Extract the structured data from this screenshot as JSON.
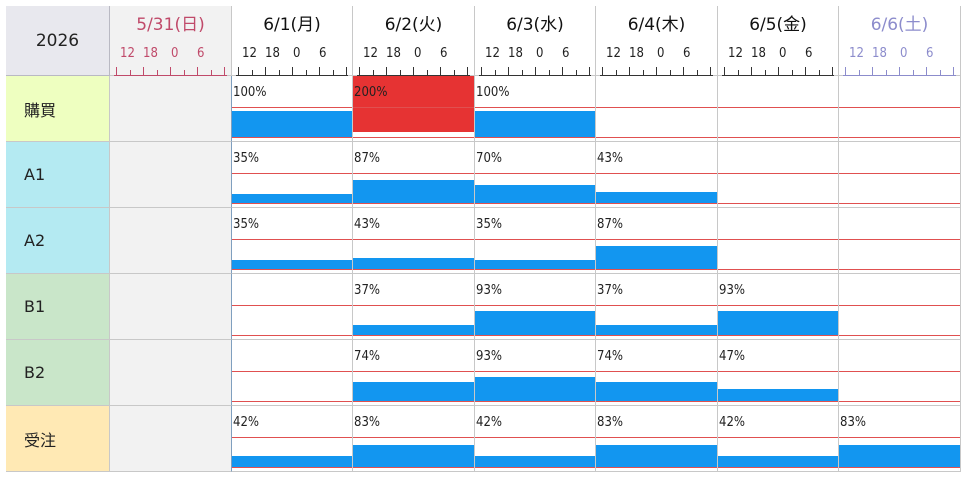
{
  "year": "2026",
  "days": [
    {
      "label": "5/31(日)",
      "kind": "sunday"
    },
    {
      "label": "6/1(月)",
      "kind": "weekday"
    },
    {
      "label": "6/2(火)",
      "kind": "weekday"
    },
    {
      "label": "6/3(水)",
      "kind": "weekday"
    },
    {
      "label": "6/4(木)",
      "kind": "weekday"
    },
    {
      "label": "6/5(金)",
      "kind": "weekday"
    },
    {
      "label": "6/6(土)",
      "kind": "saturday"
    }
  ],
  "hour_ticks": [
    "12",
    "18",
    "0",
    "6"
  ],
  "colors": {
    "bar": "#1296f0",
    "over": "#e63333",
    "grid_red": "#e05050"
  },
  "rows": [
    {
      "label": "購買",
      "bg": "#eeffc0",
      "cells": [
        {
          "day": 1,
          "pct": "100%",
          "value": 100
        },
        {
          "day": 2,
          "pct": "200%",
          "value": 200
        },
        {
          "day": 3,
          "pct": "100%",
          "value": 100
        }
      ]
    },
    {
      "label": "A1",
      "bg": "#b4eaf2",
      "cells": [
        {
          "day": 1,
          "pct": "35%",
          "value": 35
        },
        {
          "day": 2,
          "pct": "87%",
          "value": 87
        },
        {
          "day": 3,
          "pct": "70%",
          "value": 70
        },
        {
          "day": 4,
          "pct": "43%",
          "value": 43
        }
      ]
    },
    {
      "label": "A2",
      "bg": "#b4eaf2",
      "cells": [
        {
          "day": 1,
          "pct": "35%",
          "value": 35
        },
        {
          "day": 2,
          "pct": "43%",
          "value": 43
        },
        {
          "day": 3,
          "pct": "35%",
          "value": 35
        },
        {
          "day": 4,
          "pct": "87%",
          "value": 87
        }
      ]
    },
    {
      "label": "B1",
      "bg": "#c9e6c9",
      "cells": [
        {
          "day": 2,
          "pct": "37%",
          "value": 37
        },
        {
          "day": 3,
          "pct": "93%",
          "value": 93
        },
        {
          "day": 4,
          "pct": "37%",
          "value": 37
        },
        {
          "day": 5,
          "pct": "93%",
          "value": 93
        }
      ]
    },
    {
      "label": "B2",
      "bg": "#c9e6c9",
      "cells": [
        {
          "day": 2,
          "pct": "74%",
          "value": 74
        },
        {
          "day": 3,
          "pct": "93%",
          "value": 93
        },
        {
          "day": 4,
          "pct": "74%",
          "value": 74
        },
        {
          "day": 5,
          "pct": "47%",
          "value": 47
        }
      ]
    },
    {
      "label": "受注",
      "bg": "#ffe9b4",
      "cells": [
        {
          "day": 1,
          "pct": "42%",
          "value": 42
        },
        {
          "day": 2,
          "pct": "83%",
          "value": 83
        },
        {
          "day": 3,
          "pct": "42%",
          "value": 42
        },
        {
          "day": 4,
          "pct": "83%",
          "value": 83
        },
        {
          "day": 5,
          "pct": "42%",
          "value": 42
        },
        {
          "day": 6,
          "pct": "83%",
          "value": 83
        }
      ]
    }
  ]
}
